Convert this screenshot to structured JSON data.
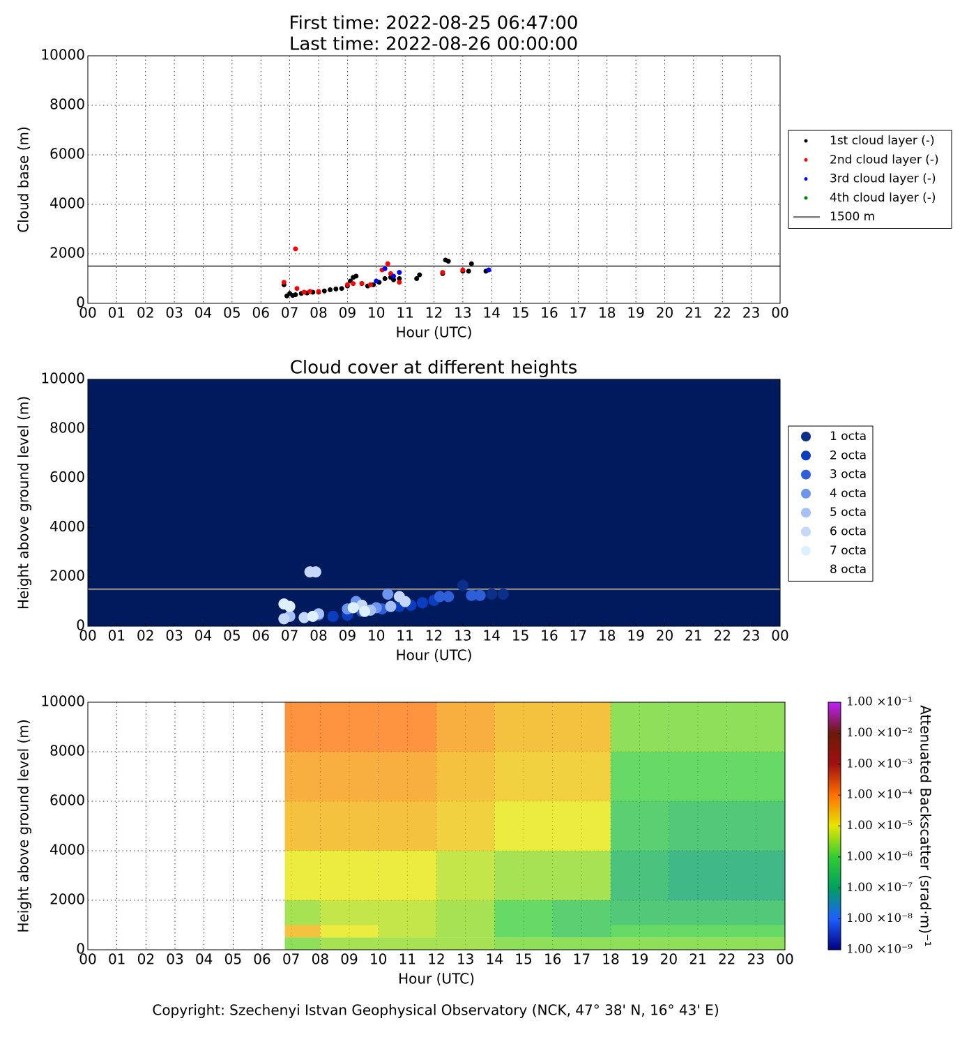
{
  "chart_data": [
    {
      "type": "scatter",
      "title": "First time: 2022-08-25 06:47:00",
      "subtitle": "Last time: 2022-08-26 00:00:00",
      "xlabel": "Hour (UTC)",
      "ylabel": "Cloud base (m)",
      "xlim": [
        0,
        24
      ],
      "ylim": [
        0,
        10000
      ],
      "xticks": [
        {
          "value": 0,
          "label": "00"
        },
        {
          "value": 1,
          "label": "01"
        },
        {
          "value": 2,
          "label": "02"
        },
        {
          "value": 3,
          "label": "03"
        },
        {
          "value": 4,
          "label": "04"
        },
        {
          "value": 5,
          "label": "05"
        },
        {
          "value": 6,
          "label": "06"
        },
        {
          "value": 7,
          "label": "07"
        },
        {
          "value": 8,
          "label": "08"
        },
        {
          "value": 9,
          "label": "09"
        },
        10,
        11,
        12,
        13,
        14,
        15,
        16,
        17,
        18,
        19,
        20,
        21,
        22,
        23,
        {
          "value": 24,
          "label": "00"
        }
      ],
      "yticks": [
        0,
        2000,
        4000,
        6000,
        8000,
        10000
      ],
      "grid": true,
      "legend": "outside right",
      "series": [
        {
          "name": "1st cloud layer (-)",
          "color": "#000000",
          "x": [
            6.8,
            6.9,
            7.0,
            7.1,
            7.2,
            7.4,
            7.6,
            7.8,
            8.0,
            8.2,
            8.4,
            8.6,
            8.8,
            9.0,
            9.1,
            9.2,
            9.3,
            9.5,
            9.7,
            9.9,
            10.1,
            10.3,
            10.5,
            10.6,
            10.8,
            11.4,
            11.5,
            12.3,
            12.4,
            12.5,
            13.0,
            13.2,
            13.3,
            13.8,
            13.9
          ],
          "values": [
            750,
            300,
            400,
            320,
            350,
            400,
            420,
            450,
            450,
            500,
            550,
            580,
            600,
            700,
            900,
            1050,
            1100,
            800,
            700,
            750,
            850,
            1000,
            1050,
            950,
            1000,
            1000,
            1150,
            1200,
            1750,
            1700,
            1300,
            1300,
            1600,
            1300,
            1350
          ]
        },
        {
          "name": "2nd cloud layer (-)",
          "color": "#ff0000",
          "x": [
            6.8,
            7.2,
            7.25,
            7.5,
            7.7,
            8.0,
            9.0,
            9.2,
            9.5,
            9.8,
            10.2,
            10.4,
            10.5,
            10.8,
            12.3,
            13.0
          ],
          "values": [
            850,
            2200,
            600,
            450,
            480,
            480,
            750,
            800,
            800,
            750,
            1350,
            1600,
            1200,
            850,
            1250,
            1350
          ]
        },
        {
          "name": "3rd cloud layer (-)",
          "color": "#0000ff",
          "x": [
            10.0,
            10.3,
            10.6,
            10.8,
            13.9
          ],
          "values": [
            900,
            1400,
            1100,
            1250,
            1350
          ]
        },
        {
          "name": "4th cloud layer (-)",
          "color": "#008000",
          "x": [],
          "values": []
        }
      ],
      "reference_lines": [
        {
          "name": "1500 m",
          "value": 1500,
          "color": "#808080"
        }
      ]
    },
    {
      "type": "scatter",
      "title": "Cloud cover at different heights",
      "xlabel": "Hour (UTC)",
      "ylabel": "Height above ground level (m)",
      "xlim": [
        0,
        24
      ],
      "ylim": [
        0,
        10000
      ],
      "xticks": [
        {
          "value": 0,
          "label": "00"
        },
        {
          "value": 1,
          "label": "01"
        },
        {
          "value": 2,
          "label": "02"
        },
        {
          "value": 3,
          "label": "03"
        },
        {
          "value": 4,
          "label": "04"
        },
        {
          "value": 5,
          "label": "05"
        },
        {
          "value": 6,
          "label": "06"
        },
        {
          "value": 7,
          "label": "07"
        },
        {
          "value": 8,
          "label": "08"
        },
        {
          "value": 9,
          "label": "09"
        },
        10,
        11,
        12,
        13,
        14,
        15,
        16,
        17,
        18,
        19,
        20,
        21,
        22,
        23,
        {
          "value": 24,
          "label": "00"
        }
      ],
      "yticks": [
        0,
        2000,
        4000,
        6000,
        8000,
        10000
      ],
      "grid": false,
      "legend": "outside right",
      "background": "#001a5e",
      "series": [
        {
          "name": "1 octa",
          "color": "#0c2f8a",
          "x": [
            13.0,
            12.5,
            13.5,
            14.0,
            14.4
          ],
          "values": [
            1650,
            1200,
            1250,
            1300,
            1300
          ]
        },
        {
          "name": "2 octa",
          "color": "#0a3dc0",
          "x": [
            8.5,
            9.0,
            10.8,
            11.2,
            11.6,
            12.0
          ],
          "values": [
            400,
            450,
            800,
            850,
            950,
            1050
          ]
        },
        {
          "name": "3 octa",
          "color": "#2f5fd8",
          "x": [
            8.0,
            9.5,
            10.2,
            12.2,
            12.5,
            13.3,
            13.6
          ],
          "values": [
            450,
            600,
            700,
            1200,
            1200,
            1250,
            1250
          ]
        },
        {
          "name": "4 octa",
          "color": "#6b95ef",
          "x": [
            9.0,
            9.3,
            10.4,
            10.0
          ],
          "values": [
            700,
            1000,
            1300,
            750
          ]
        },
        {
          "name": "5 octa",
          "color": "#a5bff7",
          "x": [
            7.0,
            8.0,
            9.8,
            10.5
          ],
          "values": [
            400,
            500,
            650,
            800
          ]
        },
        {
          "name": "6 octa",
          "color": "#c5d8f7",
          "x": [
            6.8,
            7.5,
            7.7,
            7.9,
            9.5,
            10.8,
            11.0
          ],
          "values": [
            300,
            350,
            2200,
            2200,
            850,
            1200,
            1000
          ]
        },
        {
          "name": "7 octa",
          "color": "#def0fd",
          "x": [
            6.8,
            7.0,
            7.8,
            9.2,
            9.6
          ],
          "values": [
            900,
            800,
            400,
            750,
            600
          ]
        },
        {
          "name": "8 octa",
          "color": "#ffffff",
          "x": [],
          "values": []
        }
      ],
      "reference_lines": [
        {
          "value": 1500,
          "color": "#808080"
        }
      ]
    },
    {
      "type": "heatmap",
      "xlabel": "Hour (UTC)",
      "ylabel": "Height above ground level (m)",
      "xlim": [
        0,
        24
      ],
      "ylim": [
        0,
        10000
      ],
      "xticks": [
        {
          "value": 0,
          "label": "00"
        },
        {
          "value": 1,
          "label": "01"
        },
        {
          "value": 2,
          "label": "02"
        },
        {
          "value": 3,
          "label": "03"
        },
        {
          "value": 4,
          "label": "04"
        },
        {
          "value": 5,
          "label": "05"
        },
        {
          "value": 6,
          "label": "06"
        },
        {
          "value": 7,
          "label": "07"
        },
        {
          "value": 8,
          "label": "08"
        },
        {
          "value": 9,
          "label": "09"
        },
        10,
        11,
        12,
        13,
        14,
        15,
        16,
        17,
        18,
        19,
        20,
        21,
        22,
        23,
        {
          "value": 24,
          "label": "00"
        }
      ],
      "yticks": [
        0,
        2000,
        4000,
        6000,
        8000,
        10000
      ],
      "grid": true,
      "xbins": [
        6.78,
        8,
        10,
        12,
        14,
        16,
        18,
        20,
        22,
        24
      ],
      "ybins": [
        0,
        500,
        1000,
        2000,
        4000,
        6000,
        8000,
        10000
      ],
      "z": [
        [
          2e-06,
          3e-06,
          3e-06,
          3e-06,
          2e-06,
          2e-06,
          2e-06,
          2e-06,
          2e-06
        ],
        [
          3e-05,
          1e-05,
          5e-06,
          3e-06,
          1e-06,
          5e-07,
          1e-06,
          1e-06,
          1e-06
        ],
        [
          3e-06,
          5e-06,
          5e-06,
          3e-06,
          1e-06,
          5e-07,
          3e-07,
          3e-07,
          3e-07
        ],
        [
          1e-05,
          1e-05,
          1e-05,
          5e-06,
          3e-06,
          3e-06,
          2e-07,
          1e-07,
          1e-07
        ],
        [
          3e-05,
          3e-05,
          3e-05,
          2e-05,
          1e-05,
          1e-05,
          5e-07,
          3e-07,
          3e-07
        ],
        [
          5e-05,
          5e-05,
          5e-05,
          3e-05,
          2e-05,
          2e-05,
          1e-06,
          1e-06,
          1e-06
        ],
        [
          0.0001,
          0.0001,
          0.0001,
          5e-05,
          3e-05,
          3e-05,
          2e-06,
          2e-06,
          2e-06
        ]
      ],
      "zlabel": "Attenuated Backscatter (srad·m)⁻¹",
      "log_z": true,
      "zlim": [
        1e-09,
        0.1
      ],
      "zticks": [
        {
          "value": 0.1,
          "label": "1.00 ×10⁻¹"
        },
        {
          "value": 0.01,
          "label": "1.00 ×10⁻²"
        },
        {
          "value": 0.001,
          "label": "1.00 ×10⁻³"
        },
        {
          "value": 0.0001,
          "label": "1.00 ×10⁻⁴"
        },
        {
          "value": 1e-05,
          "label": "1.00 ×10⁻⁵"
        },
        {
          "value": 1e-06,
          "label": "1.00 ×10⁻⁶"
        },
        {
          "value": 1e-07,
          "label": "1.00 ×10⁻⁷"
        },
        {
          "value": 1e-08,
          "label": "1.00 ×10⁻⁸"
        },
        {
          "value": 1e-09,
          "label": "1.00 ×10⁻⁹"
        }
      ],
      "colorscale": [
        "#000080",
        "#1e5fff",
        "#00a060",
        "#33cc33",
        "#e6e600",
        "#ff7000",
        "#a01010",
        "#6b1a0a",
        "#c020ff"
      ]
    }
  ],
  "footer": {
    "text": "Copyright: Szechenyi Istvan Geophysical Observatory (NCK, 47° 38' N, 16° 43' E)"
  }
}
